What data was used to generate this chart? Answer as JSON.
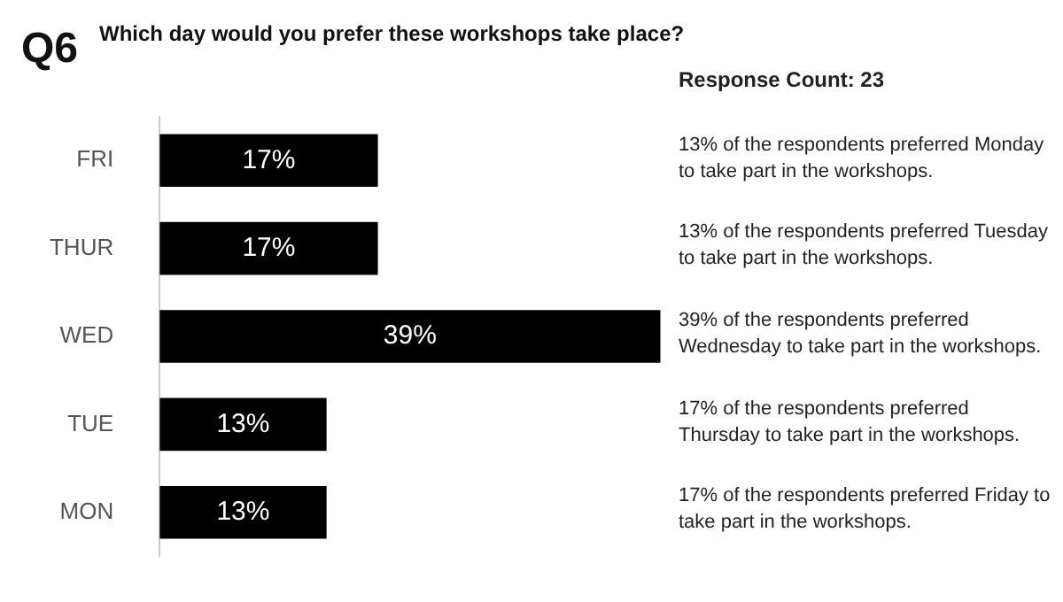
{
  "chart_data": {
    "type": "bar",
    "orientation": "horizontal",
    "title": "Q6",
    "subtitle": "Which day would you prefer these workshops take place?",
    "categories": [
      "FRI",
      "THUR",
      "WED",
      "TUE",
      "MON"
    ],
    "values": [
      17,
      17,
      39,
      13,
      13
    ],
    "value_labels": [
      "17%",
      "17%",
      "39%",
      "13%",
      "13%"
    ],
    "color": "#000000",
    "annotations": [
      "Response Count: 23",
      "13% of the respondents preferred Monday to take part in the workshops.",
      "13% of the respondents preferred Tuesday to take part in the workshops.",
      "39% of the respondents preferred Wednesday to take part in the workshops.",
      "17% of the respondents preferred Thursday to take part in the workshops.",
      "17% of the respondents preferred Friday to take part in the workshops."
    ],
    "legend": false
  }
}
